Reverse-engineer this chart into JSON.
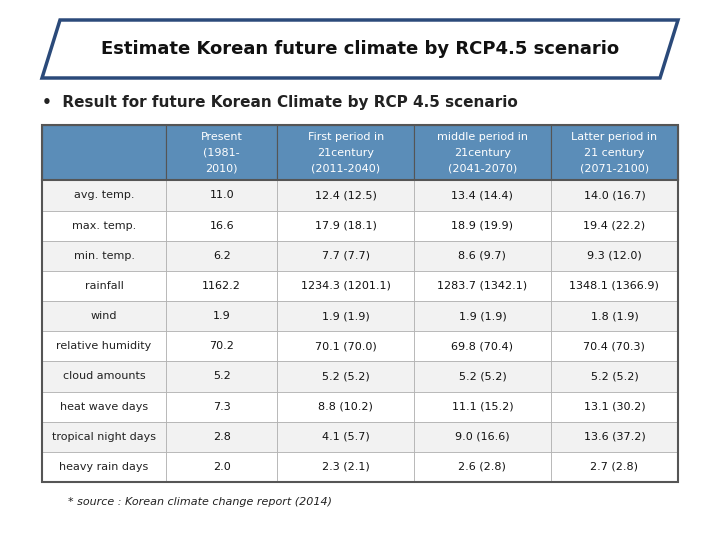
{
  "title": "Estimate Korean future climate by RCP4.5 scenario",
  "subtitle": "Result for future Korean Climate by RCP 4.5 scenario",
  "header_lines": [
    [
      "Present",
      "(1981-",
      "2010)"
    ],
    [
      "First period in",
      "21century",
      "(2011-2040)"
    ],
    [
      "middle period in",
      "21century",
      "(2041-2070)"
    ],
    [
      "Latter period in",
      "21 century",
      "(2071-2100)"
    ]
  ],
  "row_labels": [
    "avg. temp.",
    "max. temp.",
    "min. temp.",
    "rainfall",
    "wind",
    "relative humidity",
    "cloud amounts",
    "heat wave days",
    "tropical night days",
    "heavy rain days"
  ],
  "table_data": [
    [
      "11.0",
      "12.4 (12.5)",
      "13.4 (14.4)",
      "14.0 (16.7)"
    ],
    [
      "16.6",
      "17.9 (18.1)",
      "18.9 (19.9)",
      "19.4 (22.2)"
    ],
    [
      "6.2",
      "7.7 (7.7)",
      "8.6 (9.7)",
      "9.3 (12.0)"
    ],
    [
      "1162.2",
      "1234.3 (1201.1)",
      "1283.7 (1342.1)",
      "1348.1 (1366.9)"
    ],
    [
      "1.9",
      "1.9 (1.9)",
      "1.9 (1.9)",
      "1.8 (1.9)"
    ],
    [
      "70.2",
      "70.1 (70.0)",
      "69.8 (70.4)",
      "70.4 (70.3)"
    ],
    [
      "5.2",
      "5.2 (5.2)",
      "5.2 (5.2)",
      "5.2 (5.2)"
    ],
    [
      "7.3",
      "8.8 (10.2)",
      "11.1 (15.2)",
      "13.1 (30.2)"
    ],
    [
      "2.8",
      "4.1 (5.7)",
      "9.0 (16.6)",
      "13.6 (37.2)"
    ],
    [
      "2.0",
      "2.3 (2.1)",
      "2.6 (2.8)",
      "2.7 (2.8)"
    ]
  ],
  "header_bg": "#5b8db8",
  "header_text_color": "#ffffff",
  "row_label_bg_even": "#f2f2f2",
  "row_label_bg_odd": "#ffffff",
  "data_bg_even": "#f2f2f2",
  "data_bg_odd": "#ffffff",
  "border_color": "#555555",
  "inner_border_color": "#aaaaaa",
  "title_bg": "#ffffff",
  "title_border": "#2b4a7a",
  "bg_color": "#ffffff",
  "footnote": "* source : Korean climate change report (2014)",
  "title_fontsize": 13,
  "subtitle_fontsize": 11,
  "header_fontsize": 8,
  "cell_fontsize": 8
}
